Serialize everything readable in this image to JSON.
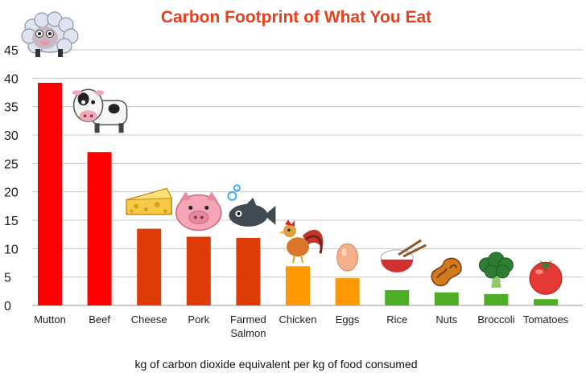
{
  "chart_data": {
    "type": "bar",
    "title": "Carbon Footprint of What You Eat",
    "xlabel": "kg of carbon dioxide equivalent per kg of food consumed",
    "ylabel": "",
    "ylim": [
      0,
      45
    ],
    "yticks": [
      0,
      5,
      10,
      15,
      20,
      25,
      30,
      35,
      40,
      45
    ],
    "grid": true,
    "categories": [
      [
        "Mutton"
      ],
      [
        "Beef"
      ],
      [
        "Cheese"
      ],
      [
        "Pork"
      ],
      [
        "Farmed",
        "Salmon"
      ],
      [
        "Chicken"
      ],
      [
        "Eggs"
      ],
      [
        "Rice"
      ],
      [
        "Nuts"
      ],
      [
        "Broccoli"
      ],
      [
        "Tomatoes"
      ]
    ],
    "values": [
      39.2,
      27,
      13.5,
      12.1,
      11.9,
      6.9,
      4.8,
      2.7,
      2.3,
      2.0,
      1.1
    ],
    "bar_colors": [
      "#ff0000",
      "#ff0000",
      "#e03c0a",
      "#e03c0a",
      "#e03c0a",
      "#ff9900",
      "#ff9900",
      "#4caf25",
      "#4caf25",
      "#4caf25",
      "#4caf25"
    ],
    "icons": [
      "sheep-icon",
      "cow-icon",
      "cheese-icon",
      "pig-icon",
      "fish-icon",
      "rooster-icon",
      "egg-icon",
      "rice-bowl-icon",
      "nut-icon",
      "broccoli-icon",
      "tomato-icon"
    ]
  },
  "colors": {
    "title": "#e8401c",
    "grid": "#c8c8c8"
  }
}
